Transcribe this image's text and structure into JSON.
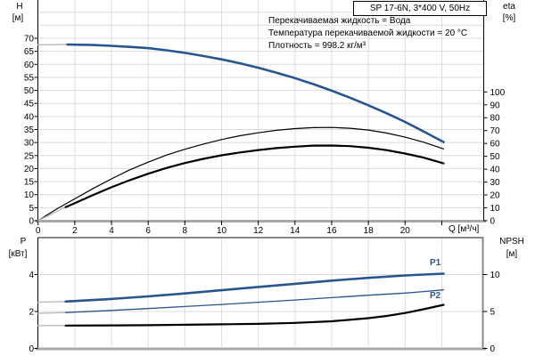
{
  "header": {
    "title": "SP 17-6N, 3*400 V, 50Hz"
  },
  "info_lines": {
    "line1": "Перекачиваемая жидкость = Вода",
    "line2": "Температура перекачиваемой жидкости = 20 °C",
    "line3": "Плотность = 998.2 кг/м³"
  },
  "labels": {
    "h_name": "H",
    "h_unit": "[м]",
    "eta_name": "eta",
    "eta_unit": "[%]",
    "q_label": "Q [м³/ч]",
    "p_name": "P",
    "p_unit": "[кВт]",
    "npsh_name": "NPSH",
    "npsh_unit": "[м]",
    "p1": "P1",
    "p2": "P2"
  },
  "colors": {
    "curve_blue": "#26558f",
    "curve_black": "#000000",
    "lead_gray": "#b7bcc4",
    "grid": "#dcdcdc",
    "axis_gray": "#a8a8a8",
    "frame_dark": "#888888",
    "axis_black": "#000000"
  },
  "chart_data": [
    {
      "type": "line",
      "title": "Pump head and efficiency vs flow",
      "x_axis": {
        "label": "Q [м³/ч]",
        "min": 0,
        "max": 24.3,
        "tick_labels": [
          0,
          2,
          4,
          6,
          8,
          10,
          12,
          14,
          16,
          18,
          20
        ],
        "tick_marks": [
          0,
          2,
          4,
          6,
          8,
          10,
          12,
          14,
          16,
          18,
          20,
          22
        ]
      },
      "y_left": {
        "label": "H [м]",
        "min": 0,
        "max": 84.7,
        "ticks": [
          0,
          5,
          10,
          15,
          20,
          25,
          30,
          35,
          40,
          45,
          50,
          55,
          60,
          65,
          70
        ]
      },
      "y_right": {
        "label": "eta [%]",
        "min": 0,
        "max": 100,
        "ticks": [
          0,
          10,
          20,
          30,
          40,
          50,
          60,
          70,
          80,
          90,
          100
        ]
      },
      "grid": true,
      "series": [
        {
          "name": "H",
          "axis": "H",
          "lead": [
            [
              0,
              67.5
            ],
            [
              1.6,
              67.6
            ]
          ],
          "points": [
            [
              1.6,
              67.6
            ],
            [
              3,
              67.4
            ],
            [
              4,
              67.1
            ],
            [
              5,
              66.7
            ],
            [
              6,
              66.2
            ],
            [
              7,
              65.4
            ],
            [
              8,
              64.4
            ],
            [
              9,
              63.2
            ],
            [
              10,
              61.9
            ],
            [
              11,
              60.4
            ],
            [
              12,
              58.7
            ],
            [
              13,
              56.8
            ],
            [
              14,
              54.7
            ],
            [
              15,
              52.4
            ],
            [
              16,
              49.9
            ],
            [
              17,
              47.2
            ],
            [
              18,
              44.3
            ],
            [
              19,
              41.2
            ],
            [
              20,
              37.9
            ],
            [
              21,
              34.3
            ],
            [
              22.1,
              30.2
            ]
          ]
        },
        {
          "name": "eta_pump",
          "axis": "eta",
          "points": [
            [
              0,
              0
            ],
            [
              1,
              9
            ],
            [
              2,
              17
            ],
            [
              3,
              25
            ],
            [
              4,
              32.5
            ],
            [
              5,
              39.5
            ],
            [
              6,
              45.5
            ],
            [
              7,
              51
            ],
            [
              8,
              55.5
            ],
            [
              9,
              59.5
            ],
            [
              10,
              63
            ],
            [
              11,
              66
            ],
            [
              12,
              68.3
            ],
            [
              13,
              70.2
            ],
            [
              14,
              71.5
            ],
            [
              15,
              72.3
            ],
            [
              16,
              72.4
            ],
            [
              17,
              71.8
            ],
            [
              18,
              70.4
            ],
            [
              19,
              68.1
            ],
            [
              20,
              64.9
            ],
            [
              21,
              61
            ],
            [
              22.1,
              55.8
            ]
          ]
        },
        {
          "name": "eta_total",
          "axis": "eta",
          "lead": [
            [
              0,
              0
            ],
            [
              1.5,
              10.5
            ]
          ],
          "points": [
            [
              1.5,
              10.5
            ],
            [
              2,
              13.7
            ],
            [
              3,
              20
            ],
            [
              4,
              26
            ],
            [
              5,
              31.5
            ],
            [
              6,
              36.5
            ],
            [
              7,
              41
            ],
            [
              8,
              44.8
            ],
            [
              9,
              48
            ],
            [
              10,
              50.8
            ],
            [
              11,
              53
            ],
            [
              12,
              54.9
            ],
            [
              13,
              56.4
            ],
            [
              14,
              57.5
            ],
            [
              15,
              58.3
            ],
            [
              16,
              58.4
            ],
            [
              17,
              57.9
            ],
            [
              18,
              56.7
            ],
            [
              19,
              54.8
            ],
            [
              20,
              52.2
            ],
            [
              21,
              49
            ],
            [
              22.1,
              44.5
            ]
          ]
        }
      ]
    },
    {
      "type": "line",
      "title": "Power and NPSH vs flow",
      "x_axis": {
        "label": "",
        "min": 0,
        "max": 24.3,
        "tick_labels": [],
        "tick_marks": []
      },
      "y_left": {
        "label": "P [кВт]",
        "min": 0,
        "max": 6,
        "ticks": [
          0,
          2,
          4
        ]
      },
      "y_right": {
        "label": "NPSH [м]",
        "min": 0,
        "max": 15,
        "ticks": [
          0,
          5,
          10
        ]
      },
      "grid": true,
      "series": [
        {
          "name": "P1",
          "axis": "P",
          "lead": [
            [
              0,
              2.5
            ],
            [
              1.5,
              2.54
            ]
          ],
          "points": [
            [
              1.5,
              2.54
            ],
            [
              4,
              2.68
            ],
            [
              6,
              2.82
            ],
            [
              8,
              2.98
            ],
            [
              10,
              3.15
            ],
            [
              12,
              3.33
            ],
            [
              14,
              3.5
            ],
            [
              16,
              3.67
            ],
            [
              18,
              3.82
            ],
            [
              20,
              3.95
            ],
            [
              21,
              4.0
            ],
            [
              22.1,
              4.05
            ]
          ]
        },
        {
          "name": "P2",
          "axis": "P",
          "lead": [
            [
              0,
              1.9
            ],
            [
              1.5,
              1.94
            ]
          ],
          "points": [
            [
              1.5,
              1.94
            ],
            [
              4,
              2.06
            ],
            [
              6,
              2.16
            ],
            [
              8,
              2.27
            ],
            [
              10,
              2.38
            ],
            [
              12,
              2.5
            ],
            [
              14,
              2.62
            ],
            [
              16,
              2.75
            ],
            [
              18,
              2.88
            ],
            [
              20,
              3.0
            ],
            [
              21,
              3.08
            ],
            [
              22.1,
              3.17
            ]
          ]
        },
        {
          "name": "NPSH",
          "axis": "NPSH",
          "lead": [
            [
              0,
              3.1
            ],
            [
              1.5,
              3.1
            ]
          ],
          "points": [
            [
              1.5,
              3.1
            ],
            [
              4,
              3.12
            ],
            [
              6,
              3.15
            ],
            [
              8,
              3.2
            ],
            [
              10,
              3.26
            ],
            [
              12,
              3.33
            ],
            [
              14,
              3.46
            ],
            [
              16,
              3.68
            ],
            [
              18,
              4.1
            ],
            [
              19,
              4.4
            ],
            [
              20,
              4.8
            ],
            [
              21,
              5.3
            ],
            [
              22.1,
              5.9
            ]
          ]
        }
      ]
    }
  ]
}
